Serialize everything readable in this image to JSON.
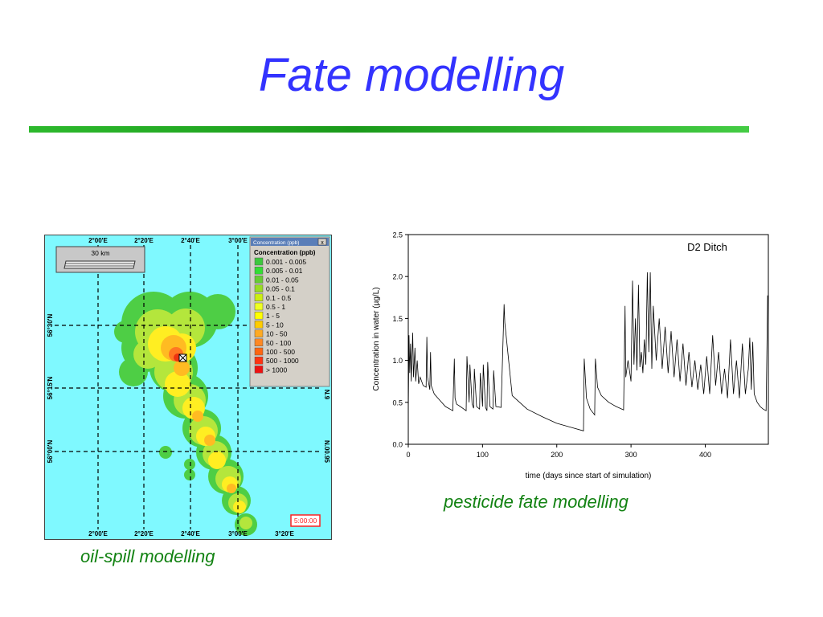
{
  "slide": {
    "title": "Fate modelling",
    "left_caption": "oil-spill modelling",
    "right_caption": "pesticide fate modelling"
  },
  "map": {
    "scale_label": "30 km",
    "top_lon_labels": [
      "2°00'E",
      "2°20'E",
      "2°40'E",
      "3°00'E"
    ],
    "bottom_lon_labels": [
      "2°00'E",
      "2°20'E",
      "2°40'E",
      "3°00'E",
      "3°20'E"
    ],
    "left_lat_labels": [
      "56°30'N",
      "56°15'N",
      "56°00'N"
    ],
    "right_lat_labels": [
      "N.9",
      "N.00.95"
    ],
    "timer": "5:00:00",
    "legend": {
      "window_title": "Concentration (ppb)",
      "heading": "Concentration (ppb)",
      "close_glyph": "x",
      "items": [
        {
          "label": "0.001 - 0.005",
          "color": "#3cc83c"
        },
        {
          "label": "0.005 - 0.01",
          "color": "#33dd33"
        },
        {
          "label": "0.01 - 0.05",
          "color": "#66cc33"
        },
        {
          "label": "0.05 - 0.1",
          "color": "#99dd22"
        },
        {
          "label": "0.1 - 0.5",
          "color": "#ccee11"
        },
        {
          "label": "0.5 - 1",
          "color": "#eeff22"
        },
        {
          "label": "1 - 5",
          "color": "#ffff00"
        },
        {
          "label": "5 - 10",
          "color": "#ffcc00"
        },
        {
          "label": "10 - 50",
          "color": "#ffaa22"
        },
        {
          "label": "50 - 100",
          "color": "#ff8822"
        },
        {
          "label": "100 - 500",
          "color": "#ff6611"
        },
        {
          "label": "500 - 1000",
          "color": "#ff3311"
        },
        {
          "label": "> 1000",
          "color": "#ee1111"
        }
      ]
    }
  },
  "chart_data": {
    "type": "line",
    "annotation": "D2 Ditch",
    "xlabel": "time (days since start of simulation)",
    "ylabel": "Concentration in water (µg/L)",
    "xlim": [
      0,
      485
    ],
    "ylim": [
      0,
      2.5
    ],
    "xticks": [
      0,
      100,
      200,
      300,
      400
    ],
    "yticks": [
      0.0,
      0.5,
      1.0,
      1.5,
      2.0,
      2.5
    ],
    "xtick_labels": [
      "0",
      "100",
      "200",
      "300",
      "400"
    ],
    "ytick_labels": [
      "0.0",
      "0.5",
      "1.0",
      "1.5",
      "2.0",
      "2.5"
    ],
    "grid": false,
    "series": [
      {
        "x": [
          0,
          1,
          2,
          3,
          4,
          6,
          7,
          9,
          10,
          12,
          14,
          16,
          20,
          24,
          25,
          26,
          29,
          30,
          31,
          35,
          40,
          50,
          60,
          62,
          63,
          65,
          70,
          78,
          79,
          82,
          83,
          86,
          88,
          89,
          92,
          96,
          97,
          100,
          101,
          104,
          106,
          107,
          110,
          114,
          115,
          118,
          125,
          129,
          130,
          140,
          160,
          180,
          200,
          220,
          236,
          237,
          240,
          245,
          251,
          252,
          255,
          260,
          270,
          280,
          290,
          292,
          293,
          296,
          300,
          302,
          304,
          306,
          308,
          310,
          312,
          314,
          316,
          318,
          320,
          322,
          324,
          326,
          328,
          330,
          334,
          338,
          342,
          346,
          350,
          354,
          358,
          362,
          366,
          370,
          374,
          378,
          382,
          386,
          390,
          394,
          398,
          402,
          406,
          410,
          414,
          418,
          422,
          426,
          430,
          434,
          438,
          442,
          446,
          450,
          454,
          458,
          460,
          462,
          464,
          466,
          470,
          474,
          478,
          482,
          484,
          485
        ],
        "y": [
          0.35,
          1.3,
          0.85,
          1.2,
          0.75,
          1.33,
          0.8,
          1.15,
          0.75,
          1.0,
          0.72,
          0.8,
          0.7,
          0.68,
          1.28,
          0.8,
          0.65,
          1.1,
          0.7,
          0.6,
          0.55,
          0.45,
          0.4,
          1.02,
          0.55,
          0.48,
          0.45,
          0.4,
          1.05,
          0.5,
          0.95,
          0.48,
          0.43,
          0.9,
          0.45,
          0.42,
          0.85,
          0.45,
          0.95,
          0.44,
          0.4,
          0.98,
          0.45,
          0.42,
          0.88,
          0.45,
          0.44,
          1.67,
          1.45,
          0.58,
          0.42,
          0.33,
          0.25,
          0.2,
          0.16,
          1.02,
          0.55,
          0.42,
          0.35,
          1.02,
          0.68,
          0.58,
          0.5,
          0.45,
          0.41,
          1.65,
          0.8,
          1.0,
          0.75,
          1.95,
          0.95,
          1.5,
          0.88,
          1.9,
          0.92,
          1.1,
          0.85,
          1.25,
          0.95,
          2.05,
          1.1,
          2.05,
          0.9,
          1.65,
          1.0,
          1.5,
          0.9,
          1.4,
          0.85,
          1.35,
          0.8,
          1.25,
          0.75,
          1.2,
          0.7,
          1.1,
          0.68,
          1.0,
          0.65,
          0.95,
          0.6,
          1.05,
          0.6,
          1.3,
          0.7,
          1.1,
          0.6,
          0.9,
          0.55,
          1.25,
          0.6,
          1.0,
          0.55,
          1.2,
          0.6,
          0.9,
          1.27,
          0.65,
          1.22,
          0.6,
          0.5,
          0.45,
          0.42,
          0.4,
          1.77,
          1.77
        ]
      }
    ]
  }
}
